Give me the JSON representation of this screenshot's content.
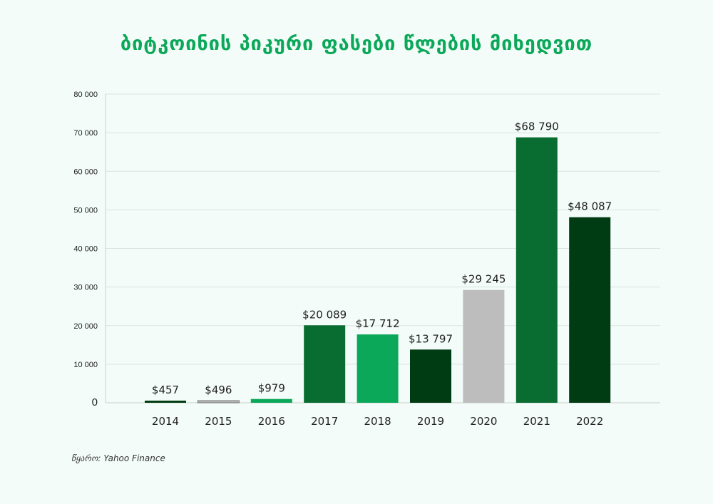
{
  "title": "ბიტკოინის პიკური ფასები წლების მიხედვით",
  "source": "წყარო: Yahoo Finance",
  "chart_data": {
    "type": "bar",
    "title": "ბიტკოინის პიკური ფასები წლების მიხედვით",
    "xlabel": "",
    "ylabel": "",
    "categories": [
      "2014",
      "2015",
      "2016",
      "2017",
      "2018",
      "2019",
      "2020",
      "2021",
      "2022"
    ],
    "values": [
      457,
      496,
      979,
      20089,
      17712,
      13797,
      29245,
      68790,
      48087
    ],
    "data_labels": [
      "$457",
      "$496",
      "$979",
      "$20 089",
      "$17 712",
      "$13 797",
      "$29 245",
      "$68 790",
      "$48 087"
    ],
    "colors": [
      "#003c13",
      "#bdbdbd",
      "#0ca85a",
      "#096d32",
      "#0ca85a",
      "#003c13",
      "#bdbdbd",
      "#096d32",
      "#003c13"
    ],
    "ylim": [
      0,
      80000
    ],
    "yticks": [
      0,
      10000,
      20000,
      30000,
      40000,
      50000,
      60000,
      70000,
      80000
    ],
    "ytick_labels": [
      "0",
      "10 000",
      "20 000",
      "30 000",
      "40 000",
      "50 000",
      "60 000",
      "70 000",
      "80 000"
    ],
    "grid": true,
    "legend": "none"
  }
}
